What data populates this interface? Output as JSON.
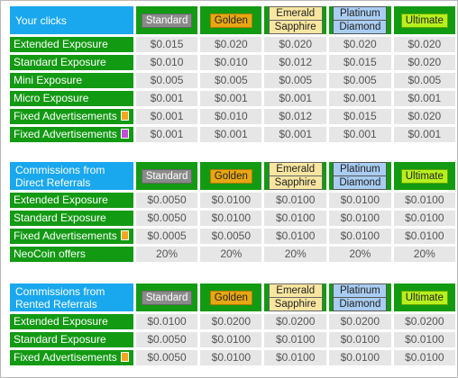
{
  "colors": {
    "label_green": "#139a13",
    "header_blue": "#19a7ee",
    "value_grey": "#e6e6e6",
    "standard": "#8a8a8a",
    "golden": "#e8a712",
    "emerald_sapphire": "#f8e6a0",
    "platinum_diamond": "#a9cdf2",
    "ultimate": "#b7f01d",
    "fixed_ad_orange": "#f5a623",
    "fixed_ad_magenta": "#c34dd8"
  },
  "tiers": {
    "standard": "Standard",
    "golden": "Golden",
    "emerald": "Emerald",
    "sapphire": "Sapphire",
    "platinum": "Platinum",
    "diamond": "Diamond",
    "ultimate": "Ultimate"
  },
  "sections": [
    {
      "title": "Your clicks",
      "rows": [
        {
          "label": "Extended Exposure",
          "values": [
            "$0.015",
            "$0.020",
            "$0.020",
            "$0.020",
            "$0.020"
          ]
        },
        {
          "label": "Standard Exposure",
          "values": [
            "$0.010",
            "$0.010",
            "$0.012",
            "$0.015",
            "$0.020"
          ]
        },
        {
          "label": "Mini Exposure",
          "values": [
            "$0.005",
            "$0.005",
            "$0.005",
            "$0.005",
            "$0.005"
          ]
        },
        {
          "label": "Micro Exposure",
          "values": [
            "$0.001",
            "$0.001",
            "$0.001",
            "$0.001",
            "$0.001"
          ]
        },
        {
          "label": "Fixed Advertisements",
          "marker": "orange",
          "values": [
            "$0.001",
            "$0.010",
            "$0.012",
            "$0.015",
            "$0.020"
          ]
        },
        {
          "label": "Fixed Advertisements",
          "marker": "magenta",
          "values": [
            "$0.001",
            "$0.001",
            "$0.001",
            "$0.001",
            "$0.001"
          ]
        }
      ]
    },
    {
      "title": "Commissions from Direct Referrals",
      "rows": [
        {
          "label": "Extended Exposure",
          "values": [
            "$0.0050",
            "$0.0100",
            "$0.0100",
            "$0.0100",
            "$0.0100"
          ]
        },
        {
          "label": "Standard Exposure",
          "values": [
            "$0.0050",
            "$0.0100",
            "$0.0100",
            "$0.0100",
            "$0.0100"
          ]
        },
        {
          "label": "Fixed Advertisements",
          "marker": "orange",
          "values": [
            "$0.0005",
            "$0.0050",
            "$0.0100",
            "$0.0100",
            "$0.0100"
          ]
        },
        {
          "label": "NeoCoin offers",
          "values": [
            "20%",
            "20%",
            "20%",
            "20%",
            "20%"
          ]
        }
      ]
    },
    {
      "title": "Commissions from Rented Referrals",
      "rows": [
        {
          "label": "Extended Exposure",
          "values": [
            "$0.0100",
            "$0.0200",
            "$0.0200",
            "$0.0200",
            "$0.0200"
          ]
        },
        {
          "label": "Standard Exposure",
          "values": [
            "$0.0050",
            "$0.0100",
            "$0.0100",
            "$0.0100",
            "$0.0100"
          ]
        },
        {
          "label": "Fixed Advertisements",
          "marker": "orange",
          "values": [
            "$0.0050",
            "$0.0100",
            "$0.0100",
            "$0.0100",
            "$0.0100"
          ]
        }
      ]
    }
  ]
}
